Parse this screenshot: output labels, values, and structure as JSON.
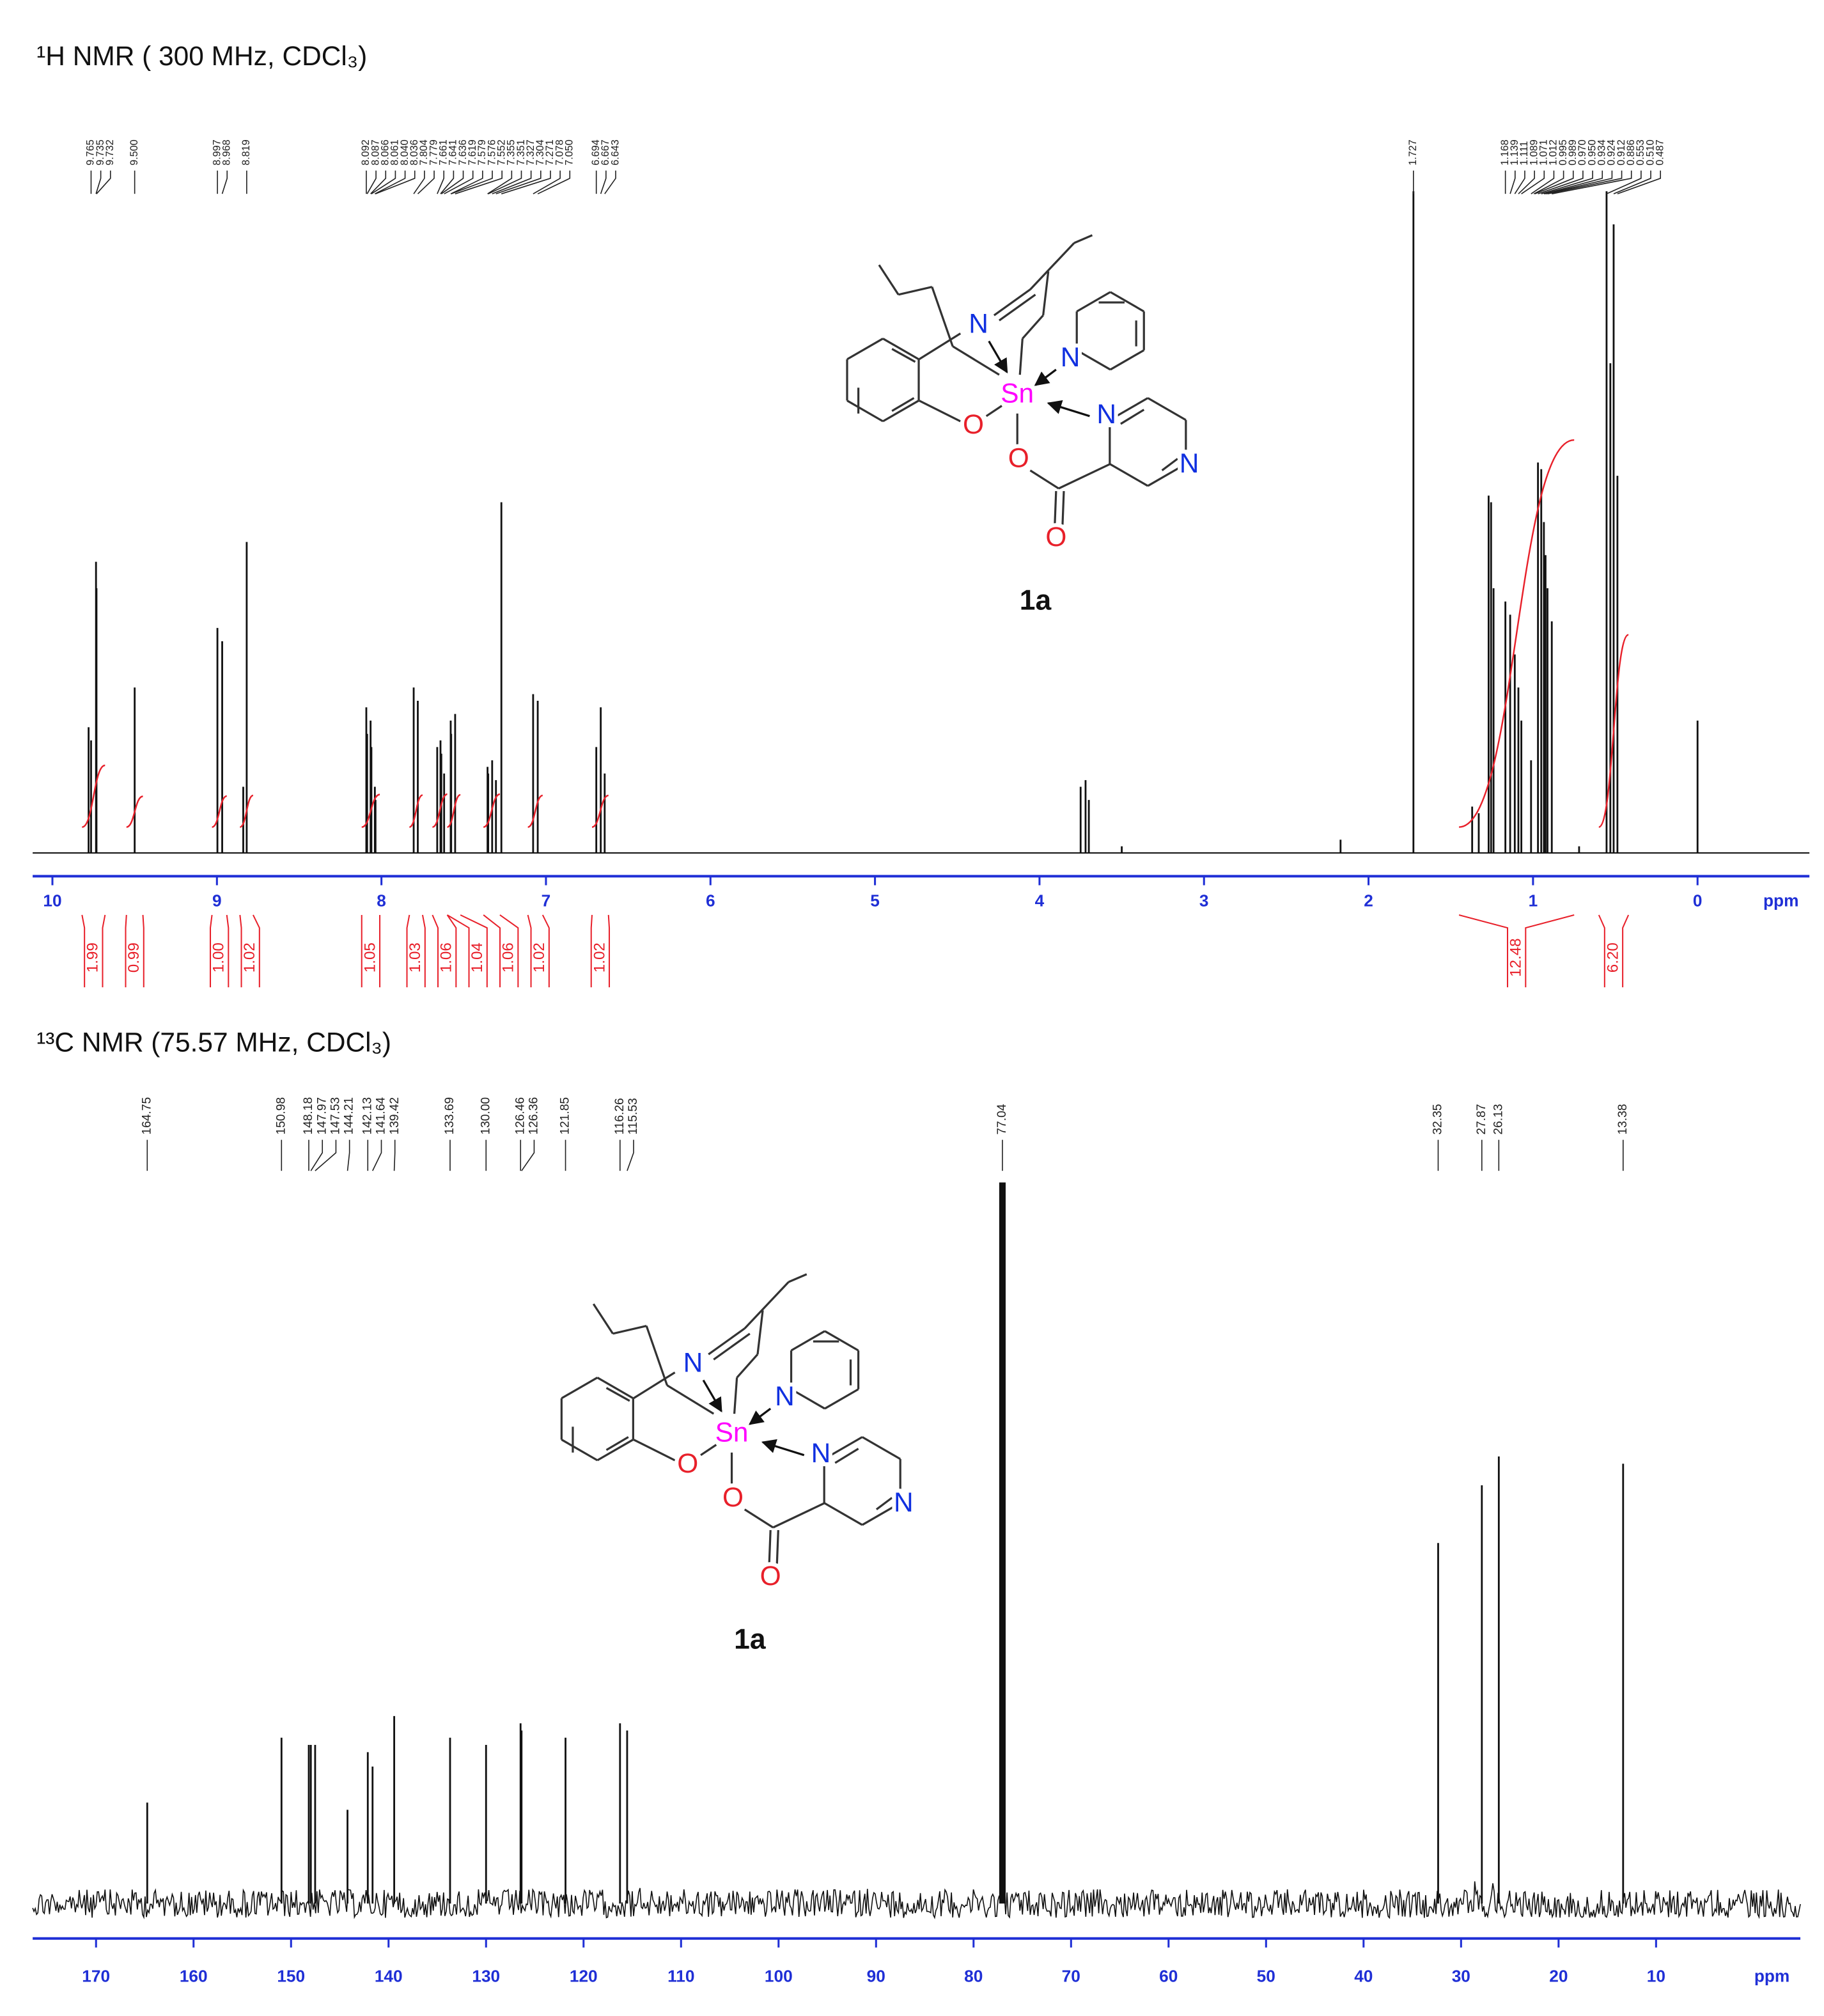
{
  "chart_data": [
    {
      "type": "spectrum",
      "title": "¹H NMR ( 300 MHz, CDCl₃)",
      "x_label": "ppm",
      "xlim": [
        10.12,
        -0.68
      ],
      "xticks": [
        10,
        9,
        8,
        7,
        6,
        5,
        4,
        3,
        2,
        1,
        0
      ],
      "x": [
        9.78,
        9.765,
        9.735,
        9.732,
        9.5,
        8.997,
        8.968,
        8.84,
        8.819,
        8.092,
        8.087,
        8.066,
        8.061,
        8.04,
        8.036,
        7.804,
        7.779,
        7.661,
        7.641,
        7.636,
        7.619,
        7.579,
        7.576,
        7.552,
        7.355,
        7.351,
        7.327,
        7.304,
        7.271,
        7.078,
        7.05,
        6.694,
        6.667,
        6.643,
        3.75,
        3.72,
        3.7,
        3.5,
        2.17,
        1.727,
        1.37,
        1.33,
        1.27,
        1.255,
        1.24,
        1.168,
        1.139,
        1.111,
        1.089,
        1.071,
        1.012,
        0.97,
        0.95,
        0.934,
        0.924,
        0.912,
        0.886,
        0.72,
        0.553,
        0.53,
        0.51,
        0.487,
        0.0
      ],
      "values": [
        19,
        17,
        44,
        40,
        25,
        34,
        32,
        10,
        47,
        22,
        18,
        20,
        16,
        10,
        8,
        25,
        23,
        16,
        17,
        15,
        12,
        20,
        18,
        21,
        13,
        12,
        14,
        11,
        53,
        24,
        23,
        16,
        22,
        12,
        10,
        11,
        8,
        1,
        2,
        100,
        7,
        6,
        54,
        53,
        40,
        38,
        36,
        30,
        25,
        20,
        14,
        59,
        58,
        50,
        45,
        40,
        35,
        1,
        100,
        74,
        95,
        57,
        20
      ],
      "peak_labels": [
        "9.765",
        "9.735",
        "9.732",
        "9.500",
        "8.997",
        "8.968",
        "8.819",
        "8.092",
        "8.087",
        "8.066",
        "8.061",
        "8.040",
        "8.036",
        "7.804",
        "7.779",
        "7.661",
        "7.641",
        "7.636",
        "7.619",
        "7.579",
        "7.576",
        "7.552",
        "7.355",
        "7.351",
        "7.327",
        "7.304",
        "7.271",
        "7.078",
        "7.050",
        "6.694",
        "6.667",
        "6.643",
        "1.727",
        "1.168",
        "1.139",
        "1.111",
        "1.089",
        "1.071",
        "1.012",
        "0.995",
        "0.989",
        "0.970",
        "0.950",
        "0.934",
        "0.924",
        "0.912",
        "0.886",
        "0.553",
        "0.510",
        "0.487"
      ],
      "integrals": [
        1.99,
        0.99,
        {
          "value": 1,
          "label": "1.00"
        },
        1.02,
        1.05,
        1.03,
        1.06,
        1.04,
        1.06,
        1.02,
        1.02,
        12.48,
        {
          "value": 6.2,
          "label": "6.20"
        }
      ],
      "integral_ranges": [
        [
          9.82,
          9.68
        ],
        [
          9.55,
          9.45
        ],
        [
          9.03,
          8.94
        ],
        [
          8.86,
          8.78
        ],
        [
          8.12,
          8.01
        ],
        [
          7.83,
          7.75
        ],
        [
          7.69,
          7.6
        ],
        [
          7.6,
          7.52
        ],
        [
          7.38,
          7.28
        ],
        [
          7.11,
          7.02
        ],
        [
          6.72,
          6.62
        ],
        [
          1.45,
          0.75
        ],
        [
          0.6,
          0.42
        ]
      ],
      "structure": {
        "atoms": [
          "N",
          "N",
          "Sn",
          "N",
          "N",
          "O",
          "O",
          "O"
        ],
        "label": "1a"
      }
    },
    {
      "type": "spectrum",
      "title": "¹³C NMR (75.57 MHz, CDCl₃)",
      "x_label": "ppm",
      "xlim": [
        176.5,
        -4.8
      ],
      "xticks": [
        170,
        160,
        150,
        140,
        130,
        120,
        110,
        100,
        90,
        80,
        70,
        60,
        50,
        40,
        30,
        20,
        10
      ],
      "x": [
        164.75,
        150.98,
        148.18,
        147.97,
        147.53,
        144.21,
        142.13,
        141.64,
        139.42,
        133.69,
        130,
        126.46,
        126.36,
        121.85,
        116.26,
        115.53,
        77.04,
        32.35,
        27.87,
        26.13,
        13.38
      ],
      "values": [
        14,
        23,
        22,
        22,
        22,
        13,
        21,
        19,
        26,
        23,
        22,
        25,
        24,
        23,
        25,
        24,
        100,
        50,
        58,
        62,
        61
      ],
      "peak_labels": [
        "164.75",
        "150.98",
        "148.18",
        "147.97",
        "147.53",
        "144.21",
        "142.13",
        "141.64",
        "139.42",
        "133.69",
        "130.00",
        "126.46",
        "126.36",
        "121.85",
        "116.26",
        "115.53",
        "77.04",
        "32.35",
        "27.87",
        "26.13",
        "13.38"
      ],
      "structure": {
        "atoms": [
          "N",
          "N",
          "Sn",
          "N",
          "N",
          "O",
          "O",
          "O"
        ],
        "label": "1a"
      }
    }
  ]
}
